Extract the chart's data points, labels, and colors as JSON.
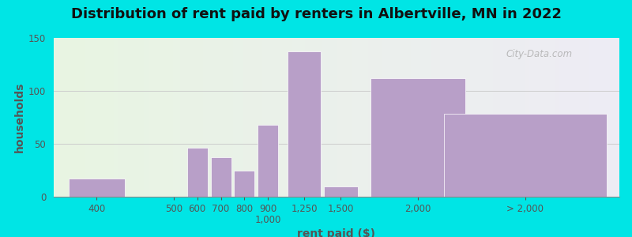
{
  "title": "Distribution of rent paid by renters in Albertville, MN in 2022",
  "xlabel": "rent paid ($)",
  "ylabel": "households",
  "bar_values": [
    17,
    0,
    46,
    37,
    25,
    68,
    137,
    10,
    112,
    78
  ],
  "bar_color": "#b89fc8",
  "ylim": [
    0,
    150
  ],
  "yticks": [
    0,
    50,
    100,
    150
  ],
  "background_color": "#00e5e5",
  "plot_bg_left": "#e8f5e2",
  "plot_bg_right": "#eeecf5",
  "title_fontsize": 13,
  "axis_label_fontsize": 10,
  "tick_fontsize": 8.5,
  "watermark_text": "City-Data.com",
  "bar_positions": [
    1.0,
    2.8,
    3.35,
    3.9,
    4.45,
    5.0,
    5.85,
    6.7,
    8.5,
    11.0
  ],
  "bar_widths": [
    1.3,
    0.48,
    0.48,
    0.48,
    0.48,
    0.48,
    0.78,
    0.78,
    2.2,
    3.8
  ],
  "xtick_positions": [
    1.0,
    2.8,
    3.35,
    3.9,
    4.45,
    5.0,
    5.85,
    6.7,
    8.5,
    11.0
  ],
  "xtick_labels": [
    "400",
    "500",
    "600",
    "700",
    "800",
    "900\n1,000",
    "1,250",
    "1,500",
    "2,000",
    "> 2,000"
  ],
  "xlim": [
    0,
    13.2
  ]
}
